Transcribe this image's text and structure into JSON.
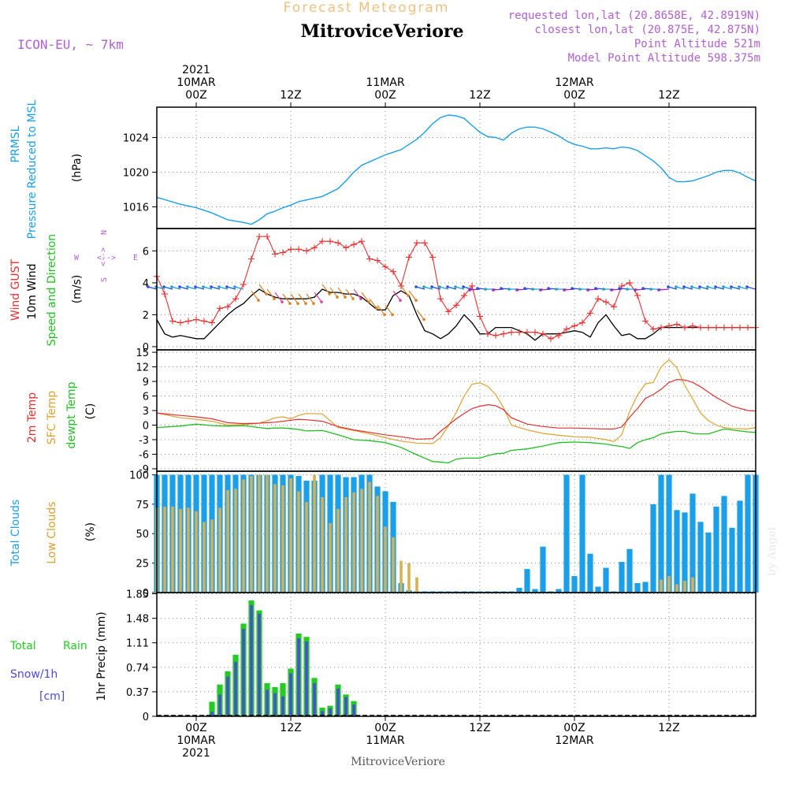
{
  "header": {
    "subtitle": "Forecast Meteogram",
    "station": "MitroviceVeriore",
    "model": "ICON-EU, ~ 7km",
    "requested": "requested lon,lat (20.8658E, 42.8919N)",
    "closest": "closest lon,lat (20.875E, 42.875N)",
    "altitude": "Point Altitude 521m",
    "model_altitude": "Model Point Altitude 598.375m",
    "credit": "by Angel",
    "footer": "MitroviceVeriore"
  },
  "colors": {
    "pressure": "#1a9fe8",
    "gust": "#e83030",
    "wind": "#000000",
    "temp2m": "#e03030",
    "sfc": "#e0a030",
    "dewpt": "#20c020",
    "total_cloud": "#1a9fe8",
    "low_cloud": "#d8b050",
    "rain": "#22cc22",
    "snow": "#4a4adf",
    "title_purple": "#b060d0",
    "subtitle_orange": "#f0c080"
  },
  "time_axis": {
    "top_date_labels": [
      {
        "hour": 0,
        "lines": [
          "2021",
          "10MAR",
          "00Z"
        ]
      },
      {
        "hour": 12,
        "lines": [
          "12Z"
        ]
      },
      {
        "hour": 24,
        "lines": [
          "11MAR",
          "00Z"
        ]
      },
      {
        "hour": 36,
        "lines": [
          "12Z"
        ]
      },
      {
        "hour": 48,
        "lines": [
          "12MAR",
          "00Z"
        ]
      },
      {
        "hour": 60,
        "lines": [
          "12Z"
        ]
      }
    ],
    "bottom_date_labels": [
      {
        "hour": 0,
        "lines": [
          "00Z",
          "10MAR",
          "2021"
        ]
      },
      {
        "hour": 12,
        "lines": [
          "12Z"
        ]
      },
      {
        "hour": 24,
        "lines": [
          "00Z",
          "11MAR"
        ]
      },
      {
        "hour": 36,
        "lines": [
          "12Z"
        ]
      },
      {
        "hour": 48,
        "lines": [
          "00Z",
          "12MAR"
        ]
      },
      {
        "hour": 60,
        "lines": [
          "12Z"
        ]
      }
    ],
    "start_hour": -5,
    "end_hour": 71
  },
  "panels": {
    "pressure": {
      "labels": [
        "PRMSL",
        "Pressure Reduced to MSL"
      ],
      "unit": "(hPa)",
      "ticks": [
        "1016",
        "1020",
        "1024"
      ]
    },
    "wind": {
      "labels": [
        "Wind GUST",
        "10m Wind",
        "Speed and Direction"
      ],
      "unit": "(m/s)",
      "ticks": [
        "0",
        "2",
        "4",
        "6"
      ],
      "compass": {
        "n": "N",
        "s": "S",
        "w": "W",
        "e": "E"
      }
    },
    "temp": {
      "labels": [
        "2m Temp",
        "SFC Temp",
        "dewpt Temp"
      ],
      "unit": "(C)",
      "ticks": [
        "-9",
        "-6",
        "-3",
        "0",
        "3",
        "6",
        "9",
        "12",
        "15"
      ]
    },
    "clouds": {
      "labels": [
        "Total Clouds",
        "Low Clouds"
      ],
      "unit": "(%)",
      "ticks": [
        "0",
        "25",
        "50",
        "75",
        "100"
      ]
    },
    "precip": {
      "labels": [
        "Total",
        "Rain",
        "Snow/1h",
        "[cm]"
      ],
      "unit": "1hr Precip (mm)",
      "ticks": [
        "0",
        "0.37",
        "0.74",
        "1.11",
        "1.48",
        "1.85"
      ]
    }
  },
  "chart_data": [
    {
      "type": "line",
      "title": "PRMSL Pressure Reduced to MSL",
      "ylabel": "hPa",
      "ylim": [
        1013.5,
        1027.5
      ],
      "x": [
        -5,
        -2,
        0,
        2,
        4,
        6,
        7,
        8,
        9,
        10,
        11,
        12,
        13,
        14,
        16,
        18,
        19,
        20,
        21,
        22,
        23,
        24,
        25,
        26,
        27,
        28,
        29,
        30,
        31,
        32,
        33,
        34,
        35,
        36,
        37,
        38,
        39,
        40,
        41,
        42,
        43,
        44,
        45,
        46,
        47,
        48,
        49,
        50,
        51,
        52,
        53,
        54,
        55,
        56,
        57,
        58,
        59,
        60,
        61,
        62,
        63,
        64,
        65,
        66,
        67,
        68,
        69,
        70,
        71
      ],
      "series": [
        {
          "values": [
            1017.1,
            1016.3,
            1015.9,
            1015.3,
            1014.5,
            1014.2,
            1014.0,
            1014.5,
            1015.2,
            1015.5,
            1015.9,
            1016.2,
            1016.6,
            1016.8,
            1017.2,
            1018.1,
            1019.0,
            1020.0,
            1020.8,
            1021.2,
            1021.6,
            1022.0,
            1022.3,
            1022.6,
            1023.2,
            1023.8,
            1024.6,
            1025.6,
            1026.3,
            1026.6,
            1026.5,
            1026.2,
            1025.4,
            1024.6,
            1024.1,
            1024.0,
            1023.7,
            1024.5,
            1025.0,
            1025.2,
            1025.2,
            1025.0,
            1024.6,
            1024.2,
            1023.6,
            1023.2,
            1023.0,
            1022.7,
            1022.7,
            1022.8,
            1022.7,
            1022.9,
            1022.8,
            1022.5,
            1021.9,
            1021.3,
            1020.5,
            1019.4,
            1018.9,
            1018.9,
            1019.0,
            1019.3,
            1019.6,
            1020.0,
            1020.2,
            1020.2,
            1019.9,
            1019.4,
            1019.0
          ]
        }
      ]
    },
    {
      "type": "line",
      "title": "Wind GUST / 10m Wind Speed and Direction",
      "ylabel": "m/s",
      "ylim": [
        -0.2,
        7.4
      ],
      "x": [
        -5,
        -4,
        -3,
        -2,
        -1,
        0,
        1,
        2,
        3,
        4,
        5,
        6,
        7,
        8,
        9,
        10,
        11,
        12,
        13,
        14,
        15,
        16,
        17,
        18,
        19,
        20,
        21,
        22,
        23,
        24,
        25,
        26,
        27,
        28,
        29,
        30,
        31,
        32,
        33,
        34,
        35,
        36,
        37,
        38,
        39,
        40,
        41,
        42,
        43,
        44,
        45,
        46,
        47,
        48,
        49,
        50,
        51,
        52,
        53,
        54,
        55,
        56,
        57,
        58,
        59,
        60,
        61,
        62,
        63,
        64,
        65,
        66,
        67,
        68,
        69,
        70,
        71
      ],
      "series": [
        {
          "name": "Wind GUST",
          "values": [
            4.4,
            3.3,
            1.6,
            1.5,
            1.6,
            1.7,
            1.6,
            1.5,
            2.4,
            2.5,
            3.0,
            3.9,
            5.5,
            6.9,
            6.9,
            5.8,
            5.9,
            6.1,
            6.1,
            6.0,
            6.2,
            6.6,
            6.6,
            6.5,
            6.2,
            6.4,
            6.6,
            5.5,
            5.4,
            5.0,
            4.7,
            3.8,
            5.6,
            6.5,
            6.5,
            5.6,
            3.0,
            2.2,
            2.6,
            3.2,
            3.8,
            1.9,
            0.8,
            0.7,
            0.8,
            0.9,
            0.9,
            0.9,
            0.9,
            0.8,
            0.5,
            0.7,
            1.1,
            1.3,
            1.5,
            2.1,
            3.0,
            2.8,
            2.5,
            3.8,
            4.0,
            3.2,
            1.6,
            1.1,
            1.2,
            1.3,
            1.4,
            1.2,
            1.3,
            1.2,
            1.2,
            1.2,
            1.2,
            1.2,
            1.2,
            1.2,
            1.2
          ]
        },
        {
          "name": "10m Wind",
          "values": [
            1.7,
            0.8,
            0.6,
            0.7,
            0.6,
            0.5,
            0.5,
            1.0,
            1.5,
            2.0,
            2.4,
            2.7,
            3.2,
            3.6,
            3.3,
            3.1,
            3.0,
            3.0,
            3.0,
            3.0,
            3.1,
            3.6,
            3.4,
            3.4,
            3.3,
            3.3,
            3.1,
            2.7,
            2.3,
            2.3,
            3.2,
            3.5,
            3.2,
            2.0,
            1.0,
            0.8,
            0.5,
            0.8,
            1.3,
            2.0,
            1.5,
            0.8,
            0.8,
            1.2,
            1.2,
            1.2,
            1.0,
            0.8,
            0.4,
            0.8,
            0.8,
            0.8,
            0.9,
            1.0,
            0.9,
            0.6,
            1.5,
            2.0,
            1.3,
            0.7,
            0.8,
            0.5,
            0.5,
            0.8,
            1.2,
            1.2,
            1.2,
            1.2,
            1.2,
            1.2,
            1.2,
            1.2,
            1.2,
            1.2,
            1.2,
            1.2,
            1.2
          ]
        }
      ]
    },
    {
      "type": "line",
      "title": "2m Temp / SFC Temp / dewpt Temp",
      "ylabel": "C",
      "ylim": [
        -9.5,
        15.5
      ],
      "x": [
        -5,
        -2,
        0,
        2,
        4,
        6,
        8,
        9,
        10,
        11,
        12,
        13,
        14,
        16,
        18,
        20,
        22,
        24,
        26,
        28,
        30,
        31,
        32,
        33,
        34,
        35,
        36,
        37,
        38,
        39,
        40,
        42,
        44,
        46,
        48,
        50,
        52,
        53,
        54,
        55,
        56,
        57,
        58,
        59,
        60,
        61,
        62,
        63,
        64,
        65,
        66,
        67,
        68,
        70,
        71
      ],
      "series": [
        {
          "name": "2m Temp",
          "values": [
            2.5,
            2.0,
            1.7,
            1.3,
            0.5,
            0.3,
            0.4,
            0.5,
            0.6,
            0.8,
            1.0,
            1.2,
            1.1,
            0.8,
            -0.3,
            -1.0,
            -1.5,
            -2.0,
            -2.4,
            -2.9,
            -2.8,
            -1.3,
            0.0,
            1.3,
            2.4,
            3.4,
            3.9,
            4.2,
            4.0,
            3.2,
            1.5,
            0.2,
            -0.3,
            -0.6,
            -0.6,
            -0.7,
            -0.8,
            -0.8,
            -0.4,
            1.6,
            3.4,
            5.5,
            6.3,
            7.4,
            8.8,
            9.4,
            9.3,
            8.8,
            7.9,
            6.8,
            5.7,
            4.8,
            3.9,
            3.0,
            2.9
          ]
        },
        {
          "name": "SFC Temp",
          "values": [
            2.5,
            1.5,
            1.2,
            0.8,
            0.0,
            0.1,
            0.4,
            0.9,
            1.5,
            1.7,
            1.3,
            2.0,
            2.4,
            2.3,
            -0.5,
            -1.1,
            -1.8,
            -2.6,
            -3.3,
            -3.7,
            -3.8,
            -2.6,
            -0.2,
            2.6,
            6.0,
            8.4,
            8.7,
            8.0,
            6.3,
            3.6,
            0.0,
            -1.0,
            -1.7,
            -2.1,
            -2.4,
            -2.5,
            -3.0,
            -3.4,
            -2.0,
            2.8,
            6.2,
            8.5,
            8.8,
            12.0,
            13.5,
            11.8,
            8.2,
            5.4,
            2.5,
            0.9,
            0.0,
            -0.5,
            -0.7,
            -0.8,
            -0.5
          ]
        },
        {
          "name": "dewpt Temp",
          "values": [
            -0.5,
            -0.2,
            0.2,
            -0.1,
            -0.2,
            -0.1,
            -0.5,
            -0.7,
            -0.6,
            -0.6,
            -0.7,
            -0.9,
            -1.2,
            -1.1,
            -2.0,
            -3.0,
            -3.2,
            -3.6,
            -4.6,
            -6.1,
            -7.5,
            -7.6,
            -7.8,
            -7.0,
            -6.8,
            -6.8,
            -6.8,
            -6.3,
            -5.9,
            -5.8,
            -5.2,
            -4.9,
            -4.3,
            -3.6,
            -3.5,
            -3.6,
            -3.9,
            -4.2,
            -4.4,
            -4.8,
            -3.6,
            -3.0,
            -2.6,
            -1.8,
            -1.5,
            -1.3,
            -1.3,
            -1.7,
            -1.8,
            -1.8,
            -1.3,
            -0.8,
            -1.0,
            -1.4,
            -1.5
          ]
        }
      ]
    },
    {
      "type": "bar",
      "title": "Total Clouds / Low Clouds",
      "ylabel": "%",
      "ylim": [
        0,
        100
      ],
      "x": [
        -5,
        -4,
        -3,
        -2,
        -1,
        0,
        1,
        2,
        3,
        4,
        5,
        6,
        7,
        8,
        9,
        10,
        11,
        12,
        13,
        14,
        15,
        16,
        17,
        18,
        19,
        20,
        21,
        22,
        23,
        24,
        25,
        26,
        27,
        28,
        29,
        30,
        31,
        32,
        33,
        34,
        35,
        36,
        37,
        38,
        39,
        40,
        41,
        42,
        43,
        44,
        45,
        46,
        47,
        48,
        49,
        50,
        51,
        52,
        53,
        54,
        55,
        56,
        57,
        58,
        59,
        60,
        61,
        62,
        63,
        64,
        65,
        66,
        67,
        68,
        69,
        70,
        71
      ],
      "series": [
        {
          "name": "Total Clouds",
          "values": [
            100,
            100,
            100,
            100,
            100,
            100,
            100,
            100,
            100,
            100,
            100,
            100,
            100,
            100,
            100,
            100,
            100,
            100,
            99,
            95,
            95,
            100,
            100,
            100,
            98,
            98,
            100,
            100,
            90,
            86,
            77,
            8,
            2,
            1,
            1,
            1,
            1,
            1,
            1,
            1,
            1,
            1,
            1,
            1,
            1,
            1,
            4,
            20,
            3,
            39,
            1,
            3,
            100,
            14,
            100,
            33,
            5,
            21,
            1,
            26,
            37,
            8,
            9,
            75,
            100,
            100,
            70,
            68,
            84,
            60,
            51,
            73,
            82,
            55,
            78,
            100,
            100
          ]
        },
        {
          "name": "Low Clouds",
          "values": [
            72,
            73,
            73,
            71,
            72,
            69,
            60,
            62,
            72,
            87,
            88,
            96,
            99,
            100,
            100,
            92,
            91,
            97,
            86,
            77,
            100,
            81,
            59,
            71,
            81,
            85,
            88,
            94,
            82,
            56,
            47,
            27,
            25,
            13,
            0,
            0,
            0,
            0,
            0,
            0,
            0,
            0,
            0,
            0,
            0,
            0,
            0,
            0,
            0,
            0,
            0,
            0,
            0,
            0,
            0,
            0,
            0,
            0,
            0,
            0,
            0,
            0,
            0,
            0,
            11,
            14,
            7,
            10,
            13,
            0,
            0,
            0,
            0,
            0,
            0,
            0,
            0
          ]
        }
      ]
    },
    {
      "type": "bar",
      "title": "1hr Precip",
      "ylabel": "1hr Precip (mm)",
      "ylim": [
        0,
        1.85
      ],
      "x": [
        -5,
        -4,
        -3,
        -2,
        -1,
        0,
        1,
        2,
        3,
        4,
        5,
        6,
        7,
        8,
        9,
        10,
        11,
        12,
        13,
        14,
        15,
        16,
        17,
        18,
        19,
        20,
        21,
        22,
        23,
        24
      ],
      "series": [
        {
          "name": "Total Rain",
          "values": [
            0,
            0,
            0,
            0,
            0,
            0,
            0,
            0.22,
            0.48,
            0.68,
            0.93,
            1.4,
            1.75,
            1.6,
            0.5,
            0.44,
            0.5,
            0.72,
            1.25,
            1.2,
            0.58,
            0.13,
            0.16,
            0.48,
            0.33,
            0.23,
            0,
            0,
            0,
            0
          ]
        },
        {
          "name": "Snow/1h",
          "values": [
            0,
            0,
            0,
            0,
            0,
            0,
            0,
            0.07,
            0.33,
            0.6,
            0.82,
            1.32,
            1.68,
            1.55,
            0.4,
            0.35,
            0.3,
            0.65,
            1.18,
            1.13,
            0.5,
            0.08,
            0.12,
            0.42,
            0.29,
            0.18,
            0,
            0,
            0,
            0
          ]
        }
      ]
    }
  ]
}
